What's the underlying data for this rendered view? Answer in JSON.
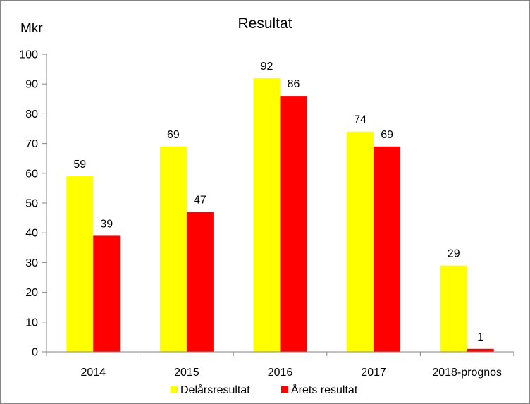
{
  "chart_data": {
    "type": "bar",
    "title": "Resultat",
    "ylabel": "Mkr",
    "xlabel": "",
    "ylim": [
      0,
      100
    ],
    "ytick_step": 10,
    "yticks": [
      "0",
      "10",
      "20",
      "30",
      "40",
      "50",
      "60",
      "70",
      "80",
      "90",
      "100"
    ],
    "categories": [
      "2014",
      "2015",
      "2016",
      "2017",
      "2018-prognos"
    ],
    "series": [
      {
        "name": "Delårsresultat",
        "values": [
          59,
          69,
          92,
          74,
          29
        ],
        "color": "#FFFF00"
      },
      {
        "name": "Årets resultat",
        "values": [
          39,
          47,
          86,
          69,
          1
        ],
        "color": "#FF0000"
      }
    ],
    "data_labels": true,
    "grid": false,
    "legend": "bottom"
  }
}
